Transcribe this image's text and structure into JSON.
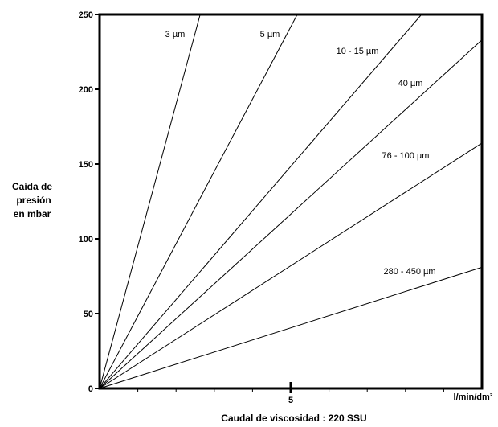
{
  "chart_data": {
    "type": "line",
    "title": "",
    "xlabel": "Caudal de viscosidad : 220 SSU",
    "ylabel_lines": [
      "Caída de",
      "presión",
      "en mbar"
    ],
    "x_unit_label": "l/min/dm²",
    "xlim": [
      0,
      10
    ],
    "ylim": [
      0,
      250
    ],
    "y_ticks": [
      0,
      50,
      100,
      150,
      200,
      250
    ],
    "x_ticks_labeled": [
      5
    ],
    "x_minor_ticks": [
      1,
      2,
      3,
      4,
      6,
      7,
      8,
      9
    ],
    "grid": false,
    "series": [
      {
        "name": "3 µm",
        "x": [
          0,
          2.63
        ],
        "y": [
          0,
          250
        ]
      },
      {
        "name": "5 µm",
        "x": [
          0,
          5.17
        ],
        "y": [
          0,
          250
        ]
      },
      {
        "name": "10 - 15 µm",
        "x": [
          0,
          8.42
        ],
        "y": [
          0,
          250
        ]
      },
      {
        "name": "40 µm",
        "x": [
          0,
          10
        ],
        "y": [
          0,
          233
        ]
      },
      {
        "name": "76 - 100 µm",
        "x": [
          0,
          10
        ],
        "y": [
          0,
          164
        ]
      },
      {
        "name": "280 - 450 µm",
        "x": [
          0,
          10
        ],
        "y": [
          0,
          81
        ]
      }
    ]
  }
}
